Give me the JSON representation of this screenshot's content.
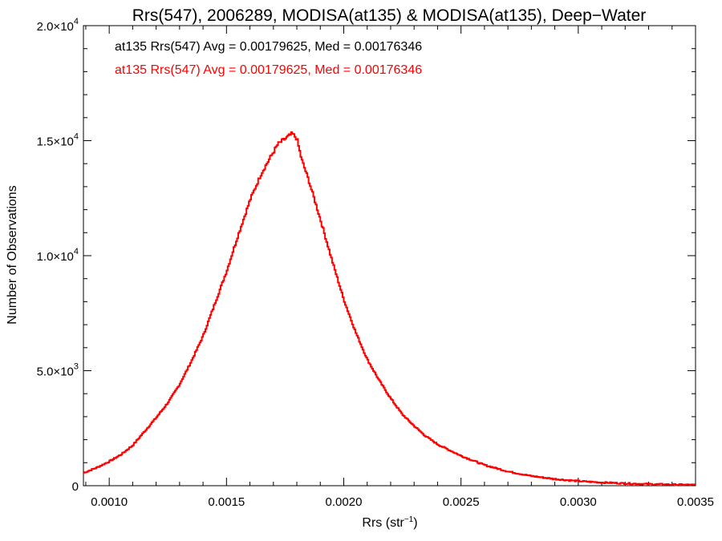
{
  "chart_data": {
    "type": "line",
    "title": "Rrs(547), 2006289, MODISA(at135) & MODISA(at135), Deep−Water",
    "xlabel_main": "Rrs (str",
    "xlabel_sup": "−1",
    "xlabel_end": ")",
    "ylabel": "Number of Observations",
    "xlim": [
      0.00089,
      0.0035
    ],
    "ylim": [
      0,
      20000
    ],
    "xticks": [
      {
        "value": 0.001,
        "label": "0.0010"
      },
      {
        "value": 0.0015,
        "label": "0.0015"
      },
      {
        "value": 0.002,
        "label": "0.0020"
      },
      {
        "value": 0.0025,
        "label": "0.0025"
      },
      {
        "value": 0.003,
        "label": "0.0030"
      },
      {
        "value": 0.0035,
        "label": "0.0035"
      }
    ],
    "yticks": [
      {
        "value": 0,
        "mant": "0",
        "exp": ""
      },
      {
        "value": 5000,
        "mant": "5.0×10",
        "exp": "3"
      },
      {
        "value": 10000,
        "mant": "1.0×10",
        "exp": "4"
      },
      {
        "value": 15000,
        "mant": "1.5×10",
        "exp": "4"
      },
      {
        "value": 20000,
        "mant": "2.0×10",
        "exp": "4"
      }
    ],
    "annotations": [
      {
        "text": "at135 Rrs(547) Avg = 0.00179625, Med = 0.00176346",
        "color": "#000000"
      },
      {
        "text": "at135 Rrs(547) Avg = 0.00179625, Med = 0.00176346",
        "color": "#ff0000"
      }
    ],
    "series": [
      {
        "color": "#ff0000",
        "style": "histogram-step",
        "x": [
          0.00089,
          0.00095,
          0.001,
          0.00105,
          0.0011,
          0.00115,
          0.0012,
          0.00125,
          0.0013,
          0.00135,
          0.0014,
          0.00145,
          0.0015,
          0.00155,
          0.0016,
          0.00165,
          0.0017,
          0.00172,
          0.00174,
          0.00176,
          0.00178,
          0.0018,
          0.00182,
          0.00185,
          0.0019,
          0.00195,
          0.002,
          0.00205,
          0.0021,
          0.00215,
          0.0022,
          0.00225,
          0.0023,
          0.00235,
          0.0024,
          0.0025,
          0.0026,
          0.0027,
          0.0028,
          0.0029,
          0.003,
          0.0031,
          0.0032,
          0.0033,
          0.0034,
          0.0035
        ],
        "y": [
          550,
          800,
          1050,
          1350,
          1750,
          2350,
          2950,
          3600,
          4400,
          5400,
          6500,
          7900,
          9300,
          10900,
          12400,
          13600,
          14500,
          14850,
          15000,
          15150,
          15300,
          15100,
          14200,
          13300,
          11600,
          9800,
          8100,
          6700,
          5500,
          4600,
          3800,
          3100,
          2600,
          2150,
          1800,
          1300,
          900,
          620,
          420,
          290,
          200,
          140,
          100,
          70,
          50,
          35
        ]
      }
    ]
  }
}
